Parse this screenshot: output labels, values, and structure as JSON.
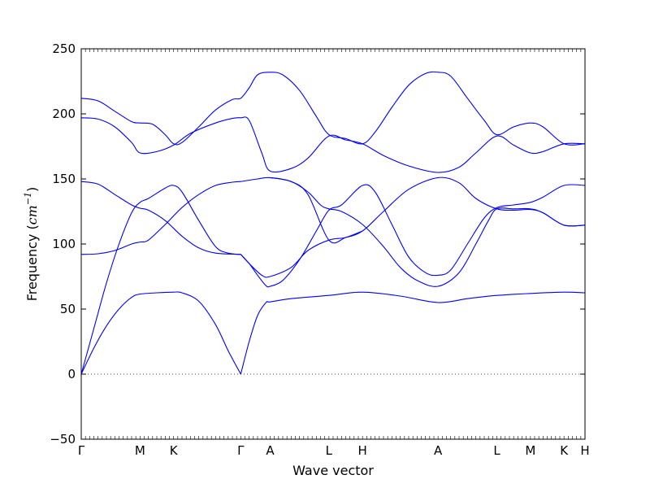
{
  "chart_data": {
    "type": "line",
    "title": "",
    "xlabel": "Wave vector",
    "ylabel": {
      "text": "Frequency (",
      "unit_base": "cm",
      "unit_sup": "−1",
      "close": ")"
    },
    "ylim": [
      -50,
      250
    ],
    "yticks": [
      -50,
      0,
      50,
      100,
      150,
      200,
      250
    ],
    "ytick_labels": [
      "−50",
      "0",
      "50",
      "100",
      "150",
      "200",
      "250"
    ],
    "grid": false,
    "legend": "none",
    "zero_line": {
      "value": 0,
      "style": "dotted"
    },
    "line_color": "#0000ff",
    "zero_line_color": "#000000",
    "xticks": [
      {
        "label": "Γ",
        "pos": 0.0
      },
      {
        "label": "M",
        "pos": 0.7
      },
      {
        "label": "K",
        "pos": 1.1
      },
      {
        "label": "Γ",
        "pos": 1.9
      },
      {
        "label": "A",
        "pos": 2.25
      },
      {
        "label": "L",
        "pos": 2.95
      },
      {
        "label": "H",
        "pos": 3.35
      },
      {
        "label": "A",
        "pos": 4.25
      },
      {
        "label": "L",
        "pos": 4.95
      },
      {
        "label": "M",
        "pos": 5.35
      },
      {
        "label": "K",
        "pos": 5.75
      },
      {
        "label": "H",
        "pos": 6.0
      }
    ],
    "xlim": [
      0,
      6.0
    ],
    "series": [
      {
        "points": [
          [
            0,
            0
          ],
          [
            0.15,
            20
          ],
          [
            0.3,
            37
          ],
          [
            0.45,
            50
          ],
          [
            0.6,
            59
          ],
          [
            0.7,
            61.5
          ],
          [
            0.9,
            62.5
          ],
          [
            1.1,
            63
          ],
          [
            1.2,
            62.5
          ],
          [
            1.4,
            56
          ],
          [
            1.6,
            38
          ],
          [
            1.75,
            18
          ],
          [
            1.9,
            0
          ]
        ]
      },
      {
        "points": [
          [
            1.9,
            0
          ],
          [
            2.0,
            25
          ],
          [
            2.1,
            45
          ],
          [
            2.2,
            55
          ],
          [
            2.25,
            55.5
          ],
          [
            2.5,
            58
          ],
          [
            2.95,
            60.5
          ],
          [
            3.35,
            63
          ],
          [
            3.8,
            60
          ],
          [
            4.25,
            55
          ],
          [
            4.6,
            58
          ],
          [
            4.95,
            60.5
          ],
          [
            5.35,
            62
          ],
          [
            5.75,
            63
          ],
          [
            6.0,
            62.5
          ]
        ]
      },
      {
        "points": [
          [
            0,
            0
          ],
          [
            0.15,
            35
          ],
          [
            0.3,
            70
          ],
          [
            0.45,
            100
          ],
          [
            0.6,
            124
          ],
          [
            0.7,
            132
          ],
          [
            0.8,
            135
          ],
          [
            1.0,
            143
          ],
          [
            1.1,
            145
          ],
          [
            1.2,
            140
          ],
          [
            1.4,
            118
          ],
          [
            1.6,
            98
          ],
          [
            1.75,
            93
          ],
          [
            1.9,
            92
          ]
        ]
      },
      {
        "points": [
          [
            0,
            92
          ],
          [
            0.2,
            92.5
          ],
          [
            0.4,
            95
          ],
          [
            0.6,
            100
          ],
          [
            0.7,
            101.5
          ],
          [
            0.8,
            103
          ],
          [
            1.0,
            115
          ],
          [
            1.2,
            128
          ],
          [
            1.4,
            138
          ],
          [
            1.6,
            145
          ],
          [
            1.8,
            147.5
          ],
          [
            1.9,
            148
          ]
        ]
      },
      {
        "points": [
          [
            0,
            148
          ],
          [
            0.2,
            146
          ],
          [
            0.4,
            138
          ],
          [
            0.6,
            130
          ],
          [
            0.7,
            127.5
          ],
          [
            0.8,
            126
          ],
          [
            1.0,
            118
          ],
          [
            1.2,
            106
          ],
          [
            1.4,
            97
          ],
          [
            1.6,
            93
          ],
          [
            1.9,
            92
          ]
        ]
      },
      {
        "points": [
          [
            1.9,
            148
          ],
          [
            2.1,
            150
          ],
          [
            2.25,
            151
          ],
          [
            2.5,
            148
          ],
          [
            2.7,
            140
          ],
          [
            2.85,
            130
          ],
          [
            2.95,
            127
          ],
          [
            3.1,
            125
          ],
          [
            3.35,
            115
          ],
          [
            3.6,
            98
          ],
          [
            3.8,
            82
          ],
          [
            4.0,
            72
          ],
          [
            4.25,
            67.5
          ],
          [
            4.5,
            78
          ],
          [
            4.7,
            100
          ],
          [
            4.85,
            118
          ],
          [
            4.95,
            127
          ],
          [
            5.15,
            127
          ],
          [
            5.35,
            127
          ],
          [
            5.5,
            124
          ],
          [
            5.75,
            114.5
          ],
          [
            6.0,
            114.5
          ]
        ]
      },
      {
        "points": [
          [
            1.9,
            92
          ],
          [
            2.0,
            85
          ],
          [
            2.1,
            76
          ],
          [
            2.2,
            68
          ],
          [
            2.25,
            67.5
          ],
          [
            2.4,
            72
          ],
          [
            2.6,
            88
          ],
          [
            2.8,
            110
          ],
          [
            2.95,
            126
          ],
          [
            3.1,
            130
          ],
          [
            3.35,
            145
          ],
          [
            3.5,
            140
          ],
          [
            3.7,
            115
          ],
          [
            3.9,
            90
          ],
          [
            4.1,
            78
          ],
          [
            4.25,
            76
          ],
          [
            4.4,
            80
          ],
          [
            4.6,
            100
          ],
          [
            4.8,
            120
          ],
          [
            4.95,
            128
          ],
          [
            5.15,
            130
          ],
          [
            5.35,
            132
          ],
          [
            5.5,
            136
          ],
          [
            5.75,
            145
          ],
          [
            6.0,
            145
          ]
        ]
      },
      {
        "points": [
          [
            1.9,
            92
          ],
          [
            2.0,
            85
          ],
          [
            2.15,
            76
          ],
          [
            2.25,
            75
          ],
          [
            2.5,
            82
          ],
          [
            2.7,
            95
          ],
          [
            2.95,
            103
          ],
          [
            3.15,
            105
          ],
          [
            3.35,
            110
          ],
          [
            3.6,
            125
          ],
          [
            3.9,
            142
          ],
          [
            4.25,
            151
          ],
          [
            4.5,
            147
          ],
          [
            4.7,
            135
          ],
          [
            4.95,
            127
          ],
          [
            5.15,
            126
          ],
          [
            5.35,
            126.5
          ],
          [
            5.5,
            124
          ],
          [
            5.75,
            114.5
          ],
          [
            6.0,
            114.5
          ]
        ]
      },
      {
        "points": [
          [
            2.25,
            151
          ],
          [
            2.5,
            148
          ],
          [
            2.7,
            138
          ],
          [
            2.95,
            103
          ],
          [
            3.15,
            105
          ],
          [
            3.35,
            110
          ]
        ]
      },
      {
        "points": [
          [
            0,
            197
          ],
          [
            0.2,
            196
          ],
          [
            0.4,
            190
          ],
          [
            0.6,
            178
          ],
          [
            0.7,
            170
          ],
          [
            0.9,
            171
          ],
          [
            1.1,
            176
          ],
          [
            1.3,
            185
          ],
          [
            1.6,
            193
          ],
          [
            1.8,
            196.5
          ],
          [
            1.9,
            197
          ],
          [
            2.0,
            195
          ],
          [
            2.15,
            170
          ],
          [
            2.25,
            156
          ],
          [
            2.5,
            158
          ],
          [
            2.7,
            166
          ],
          [
            2.95,
            183
          ],
          [
            3.15,
            180
          ],
          [
            3.35,
            177
          ],
          [
            3.6,
            168
          ],
          [
            3.9,
            160
          ],
          [
            4.25,
            155
          ],
          [
            4.5,
            159
          ],
          [
            4.7,
            170
          ],
          [
            4.95,
            183
          ],
          [
            5.15,
            176
          ],
          [
            5.35,
            170
          ],
          [
            5.5,
            171
          ],
          [
            5.75,
            177
          ],
          [
            6.0,
            177
          ]
        ]
      },
      {
        "points": [
          [
            0,
            212
          ],
          [
            0.2,
            210
          ],
          [
            0.4,
            202
          ],
          [
            0.6,
            194
          ],
          [
            0.7,
            193
          ],
          [
            0.85,
            192
          ],
          [
            1.0,
            184
          ],
          [
            1.1,
            177
          ],
          [
            1.2,
            178
          ],
          [
            1.4,
            190
          ],
          [
            1.6,
            203
          ],
          [
            1.8,
            211
          ],
          [
            1.9,
            212
          ],
          [
            2.0,
            220
          ],
          [
            2.1,
            230
          ],
          [
            2.25,
            232
          ],
          [
            2.4,
            230
          ],
          [
            2.6,
            218
          ],
          [
            2.8,
            198
          ],
          [
            2.95,
            184
          ],
          [
            3.15,
            181
          ],
          [
            3.35,
            177
          ],
          [
            3.5,
            186
          ],
          [
            3.7,
            205
          ],
          [
            3.9,
            222
          ],
          [
            4.1,
            231
          ],
          [
            4.25,
            232
          ],
          [
            4.4,
            229
          ],
          [
            4.6,
            212
          ],
          [
            4.8,
            195
          ],
          [
            4.95,
            184
          ],
          [
            5.15,
            190
          ],
          [
            5.35,
            193
          ],
          [
            5.5,
            190
          ],
          [
            5.75,
            177
          ],
          [
            6.0,
            177
          ]
        ]
      }
    ]
  }
}
